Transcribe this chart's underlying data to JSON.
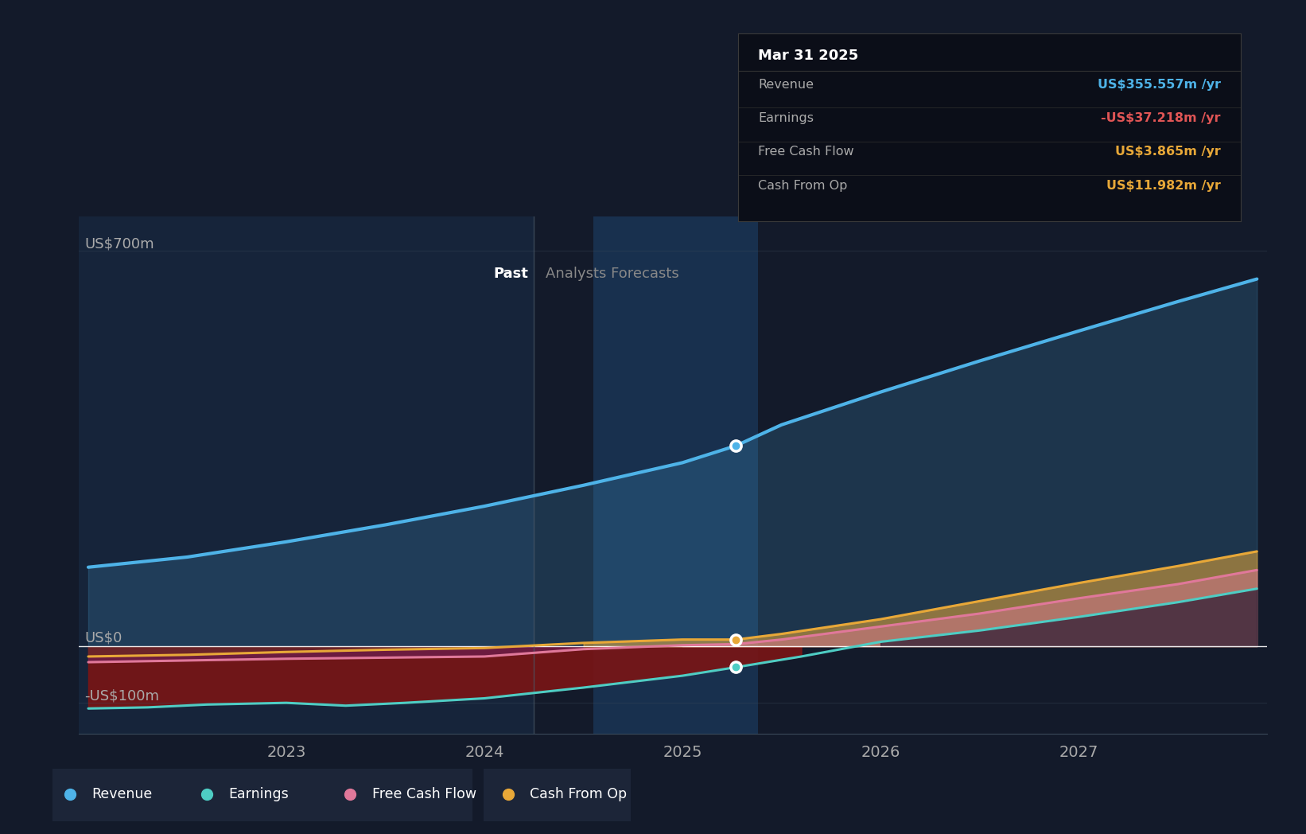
{
  "bg_color": "#131a2a",
  "plot_bg_past": "#16243a",
  "plot_bg_future": "#131a2a",
  "highlight_color": "#1a3555",
  "revenue_color": "#4eb3e8",
  "earnings_color": "#4ecdc4",
  "fcf_color": "#e0789a",
  "cashop_color": "#e8a838",
  "dark_red_fill": "#7a1515",
  "revenue_fill_alpha": 0.3,
  "past_region_end": 2024.25,
  "highlight_x_start": 2024.55,
  "highlight_x_end": 2025.38,
  "marker_x": 2025.27,
  "tooltip": {
    "title": "Mar 31 2025",
    "rows": [
      {
        "label": "Revenue",
        "value": "US$355.557m",
        "suffix": " /yr",
        "color": "#4eb3e8"
      },
      {
        "label": "Earnings",
        "value": "-US$37.218m",
        "suffix": " /yr",
        "color": "#e05555"
      },
      {
        "label": "Free Cash Flow",
        "value": "US$3.865m",
        "suffix": " /yr",
        "color": "#e8a838"
      },
      {
        "label": "Cash From Op",
        "value": "US$11.982m",
        "suffix": " /yr",
        "color": "#e8a838"
      }
    ]
  },
  "revenue_data": {
    "x": [
      2022.0,
      2022.5,
      2023.0,
      2023.5,
      2024.0,
      2024.5,
      2025.0,
      2025.27,
      2025.5,
      2026.0,
      2026.5,
      2027.0,
      2027.5,
      2027.9
    ],
    "y": [
      140,
      158,
      185,
      215,
      248,
      285,
      325,
      355,
      392,
      450,
      505,
      558,
      610,
      650
    ]
  },
  "earnings_data": {
    "x": [
      2022.0,
      2022.3,
      2022.6,
      2023.0,
      2023.3,
      2023.6,
      2024.0,
      2024.5,
      2025.0,
      2025.27,
      2025.6,
      2026.0,
      2026.5,
      2027.0,
      2027.5,
      2027.9
    ],
    "y": [
      -110,
      -108,
      -103,
      -100,
      -105,
      -100,
      -92,
      -73,
      -52,
      -37,
      -18,
      8,
      28,
      52,
      78,
      102
    ]
  },
  "fcf_data": {
    "x": [
      2022.0,
      2022.5,
      2023.0,
      2023.5,
      2024.0,
      2024.5,
      2025.0,
      2025.27,
      2025.5,
      2026.0,
      2026.5,
      2027.0,
      2027.5,
      2027.9
    ],
    "y": [
      -28,
      -25,
      -22,
      -20,
      -18,
      -5,
      2,
      3.865,
      12,
      35,
      58,
      85,
      110,
      135
    ]
  },
  "cashop_data": {
    "x": [
      2022.0,
      2022.5,
      2023.0,
      2023.5,
      2024.0,
      2024.5,
      2025.0,
      2025.27,
      2025.5,
      2026.0,
      2026.5,
      2027.0,
      2027.5,
      2027.9
    ],
    "y": [
      -18,
      -15,
      -10,
      -6,
      -3,
      6,
      12,
      11.982,
      22,
      48,
      80,
      112,
      142,
      168
    ]
  },
  "ylim": [
    -155,
    760
  ],
  "xlim": [
    2021.95,
    2027.95
  ],
  "y_label_700_x": 0.04,
  "y_label_0_x": 0.04,
  "y_label_n100_x": 0.04
}
